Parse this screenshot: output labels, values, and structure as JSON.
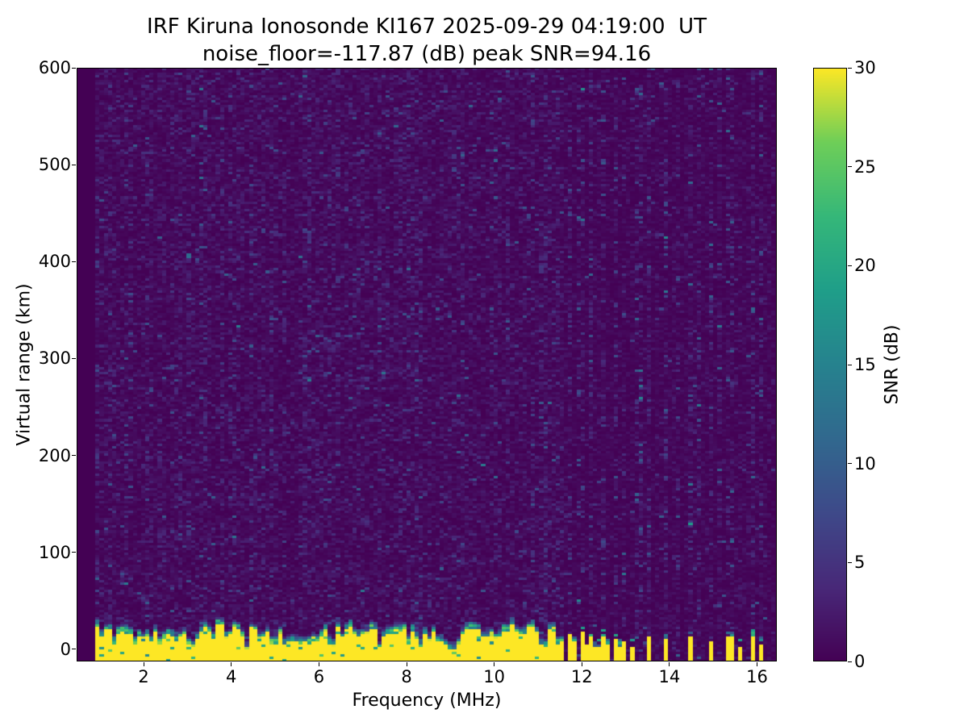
{
  "chart_data": {
    "type": "heatmap",
    "title": "IRF Kiruna Ionosonde KI167 2025-09-29 04:19:00  UT",
    "subtitle": "noise_floor=-117.87 (dB) peak SNR=94.16",
    "xlabel": "Frequency (MHz)",
    "ylabel": "Virtual range (km)",
    "xlim": [
      0.47,
      16.45
    ],
    "ylim": [
      -12.5,
      600
    ],
    "x_ticks": [
      2,
      4,
      6,
      8,
      10,
      12,
      14,
      16
    ],
    "y_ticks": [
      0,
      100,
      200,
      300,
      400,
      500,
      600
    ],
    "grid": false,
    "colorbar": {
      "label": "SNR (dB)",
      "ticks": [
        0,
        5,
        10,
        15,
        20,
        25,
        30
      ],
      "vmin": 0,
      "vmax": 30,
      "colormap": "viridis",
      "viridis_stops": [
        "#440154",
        "#482878",
        "#3e4989",
        "#31688e",
        "#26828e",
        "#1f9e89",
        "#35b779",
        "#6ece58",
        "#fde725"
      ]
    },
    "heatmap": {
      "seed": 167,
      "freq_start": 0.9,
      "freq_end": 16.42,
      "freq_bins": 164,
      "range_bins": 240,
      "noise_mean_db": 1.15,
      "high_freq_noise_factor": 0.6,
      "bright_speckle_prob": 0.004,
      "ground_echo": {
        "freq_end": 11.62,
        "top_km_base": 23,
        "top_km_jitter": 8,
        "transition_km": 9,
        "notch_freqs_mhz": [
          3.1,
          4.35,
          6.35,
          7.4,
          9.05,
          11.1
        ]
      },
      "rfi_strong_columns": [
        {
          "freq": 11.72,
          "top_km": 16
        },
        {
          "freq": 11.85,
          "top_km": 7
        },
        {
          "freq": 11.98,
          "top_km": 18
        },
        {
          "freq": 12.1,
          "top_km": 5
        },
        {
          "freq": 12.22,
          "top_km": 12
        },
        {
          "freq": 12.35,
          "top_km": 4
        },
        {
          "freq": 12.48,
          "top_km": 14
        },
        {
          "freq": 12.62,
          "top_km": 6
        },
        {
          "freq": 12.75,
          "top_km": 10
        },
        {
          "freq": 12.88,
          "top_km": 4
        },
        {
          "freq": 13.0,
          "top_km": 8
        },
        {
          "freq": 13.12,
          "top_km": 4
        },
        {
          "freq": 13.5,
          "top_km": 12
        },
        {
          "freq": 13.95,
          "top_km": 10
        },
        {
          "freq": 14.45,
          "top_km": 13
        },
        {
          "freq": 14.92,
          "top_km": 7
        },
        {
          "freq": 15.38,
          "top_km": 12
        },
        {
          "freq": 15.62,
          "top_km": 4
        },
        {
          "freq": 15.88,
          "top_km": 14
        },
        {
          "freq": 16.12,
          "top_km": 6
        }
      ],
      "rfi_faint_stripes_mhz": [
        11.72,
        11.98,
        12.22,
        12.48,
        12.75,
        13.0,
        13.3,
        13.5,
        13.95,
        14.2,
        14.45,
        14.7,
        14.92,
        15.15,
        15.38,
        15.88,
        16.12
      ],
      "mid_faint_stripes_mhz": [
        7.35,
        11.15
      ]
    }
  }
}
